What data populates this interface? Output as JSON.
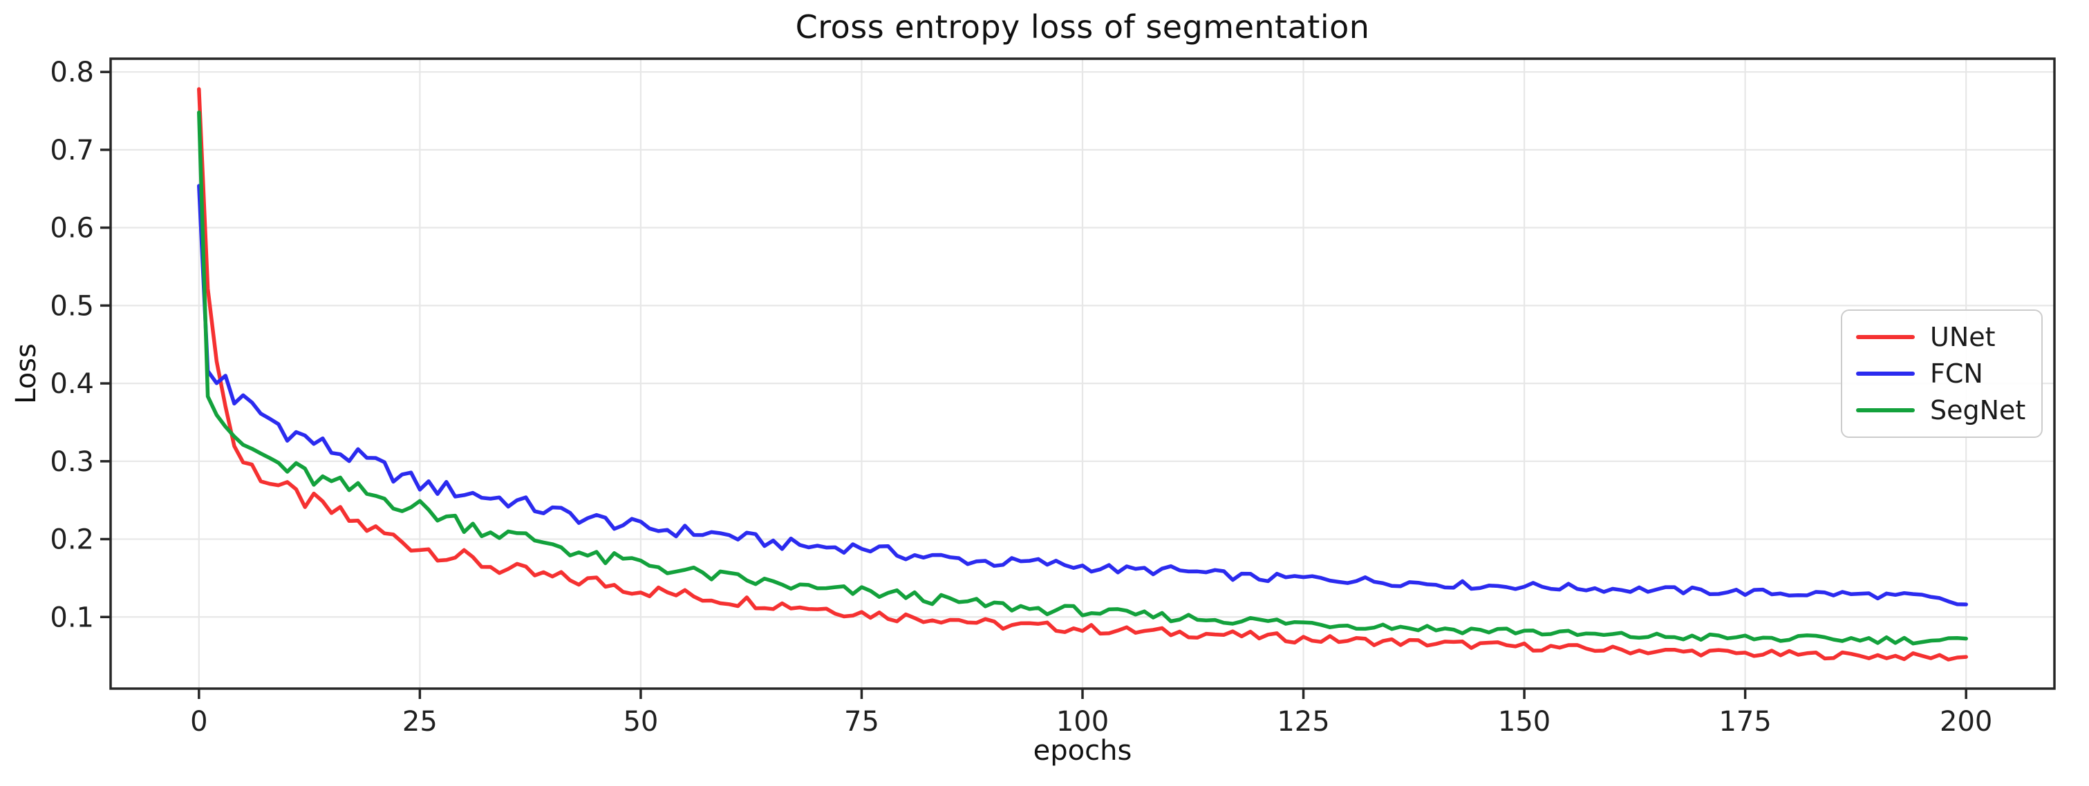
{
  "chart_data": {
    "type": "line",
    "title": "Cross entropy loss of segmentation",
    "xlabel": "epochs",
    "ylabel": "Loss",
    "xlim": [
      -10,
      210
    ],
    "ylim": [
      0.008,
      0.817
    ],
    "xticks": [
      0,
      25,
      50,
      75,
      100,
      125,
      150,
      175,
      200
    ],
    "yticks": [
      0.1,
      0.2,
      0.3,
      0.4,
      0.5,
      0.6,
      0.7,
      0.8
    ],
    "grid": true,
    "grid_color": "#e7e7e7",
    "spine_color": "#262626",
    "tick_label_color": "#1f1f1f",
    "legend_position": "center right",
    "x": [
      0,
      1,
      2,
      3,
      4,
      5,
      10,
      15,
      20,
      25,
      30,
      35,
      40,
      45,
      50,
      55,
      60,
      65,
      70,
      75,
      80,
      85,
      90,
      95,
      100,
      105,
      110,
      115,
      120,
      125,
      130,
      135,
      140,
      145,
      150,
      155,
      160,
      165,
      170,
      175,
      180,
      185,
      190,
      195,
      200
    ],
    "series": [
      {
        "name": "UNet",
        "color": "#f53131",
        "values": [
          0.78,
          0.52,
          0.43,
          0.37,
          0.32,
          0.3,
          0.26,
          0.235,
          0.21,
          0.19,
          0.175,
          0.16,
          0.15,
          0.145,
          0.135,
          0.128,
          0.122,
          0.117,
          0.112,
          0.105,
          0.1,
          0.098,
          0.09,
          0.088,
          0.085,
          0.082,
          0.08,
          0.078,
          0.075,
          0.072,
          0.07,
          0.068,
          0.066,
          0.064,
          0.062,
          0.06,
          0.058,
          0.056,
          0.055,
          0.053,
          0.052,
          0.051,
          0.05,
          0.049,
          0.048
        ]
      },
      {
        "name": "FCN",
        "color": "#2b2bef",
        "values": [
          0.655,
          0.415,
          0.4,
          0.41,
          0.375,
          0.375,
          0.34,
          0.315,
          0.295,
          0.27,
          0.26,
          0.25,
          0.235,
          0.225,
          0.215,
          0.21,
          0.205,
          0.195,
          0.19,
          0.19,
          0.18,
          0.175,
          0.17,
          0.17,
          0.165,
          0.16,
          0.16,
          0.155,
          0.15,
          0.15,
          0.148,
          0.145,
          0.143,
          0.14,
          0.14,
          0.138,
          0.136,
          0.135,
          0.133,
          0.132,
          0.13,
          0.13,
          0.128,
          0.126,
          0.115
        ]
      },
      {
        "name": "SegNet",
        "color": "#13a13c",
        "values": [
          0.75,
          0.385,
          0.36,
          0.345,
          0.33,
          0.32,
          0.29,
          0.27,
          0.255,
          0.24,
          0.22,
          0.205,
          0.195,
          0.175,
          0.17,
          0.158,
          0.15,
          0.143,
          0.135,
          0.132,
          0.128,
          0.12,
          0.115,
          0.11,
          0.108,
          0.103,
          0.1,
          0.097,
          0.095,
          0.092,
          0.09,
          0.088,
          0.085,
          0.083,
          0.082,
          0.078,
          0.076,
          0.075,
          0.074,
          0.073,
          0.072,
          0.072,
          0.071,
          0.07,
          0.07
        ]
      }
    ],
    "noise": {
      "base": 0.004,
      "extra": 0.012,
      "decay": 60
    }
  }
}
